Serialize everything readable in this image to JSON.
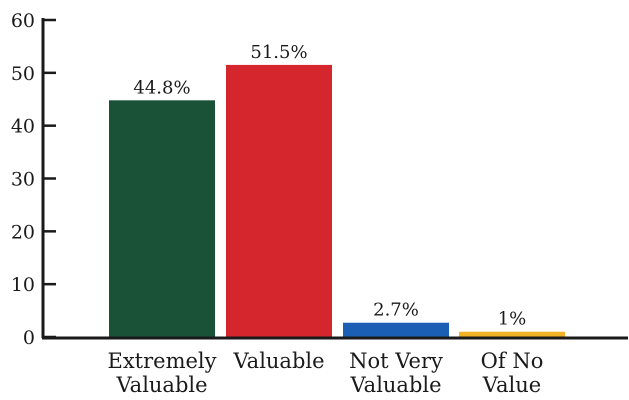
{
  "chart_data": {
    "type": "bar",
    "categories": [
      [
        "Extremely",
        "Valuable"
      ],
      [
        "Valuable"
      ],
      [
        "Not Very",
        "Valuable"
      ],
      [
        "Of No",
        "Value"
      ]
    ],
    "values": [
      44.8,
      51.5,
      2.7,
      1
    ],
    "data_labels": [
      "44.8%",
      "51.5%",
      "2.7%",
      "1%"
    ],
    "colors": [
      "#1a5238",
      "#d4262c",
      "#1a5fb4",
      "#f0b323"
    ],
    "ylim": [
      0,
      60
    ],
    "yticks": [
      0,
      10,
      20,
      30,
      40,
      50,
      60
    ],
    "grid": false,
    "legend": "none"
  }
}
